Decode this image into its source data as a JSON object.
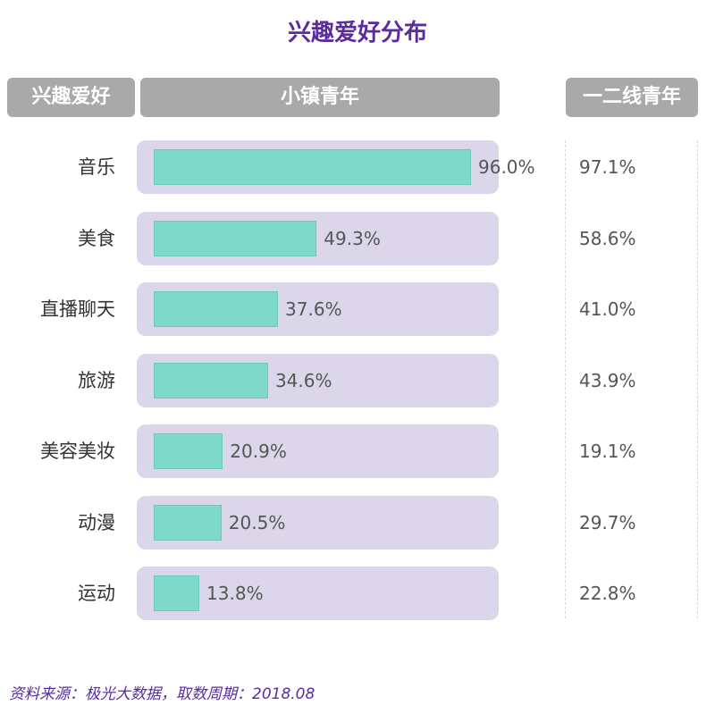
{
  "title": "兴趣爱好分布",
  "headers": {
    "hobby": "兴趣爱好",
    "small_town": "小镇青年",
    "tier12": "一二线青年"
  },
  "colors": {
    "title": "#5a2ca0",
    "header_bg": "#a9a9a9",
    "track_bg": "#dcd6ea",
    "bar": "#7fd9c8"
  },
  "chart_data": {
    "type": "bar",
    "orientation": "horizontal",
    "title": "兴趣爱好分布",
    "categories": [
      "音乐",
      "美食",
      "直播聊天",
      "旅游",
      "美容美妆",
      "动漫",
      "运动"
    ],
    "series": [
      {
        "name": "小镇青年",
        "values": [
          96.0,
          49.3,
          37.6,
          34.6,
          20.9,
          20.5,
          13.8
        ],
        "labels": [
          "96.0%",
          "49.3%",
          "37.6%",
          "34.6%",
          "20.9%",
          "20.5%",
          "13.8%"
        ]
      },
      {
        "name": "一二线青年",
        "values": [
          97.1,
          58.6,
          41.0,
          43.9,
          19.1,
          29.7,
          22.8
        ],
        "labels": [
          "97.1%",
          "58.6%",
          "41.0%",
          "43.9%",
          "19.1%",
          "29.7%",
          "22.8%"
        ]
      }
    ],
    "xlim": [
      0,
      100
    ],
    "unit": "%"
  },
  "source": "资料来源：极光大数据，取数周期：2018.08"
}
